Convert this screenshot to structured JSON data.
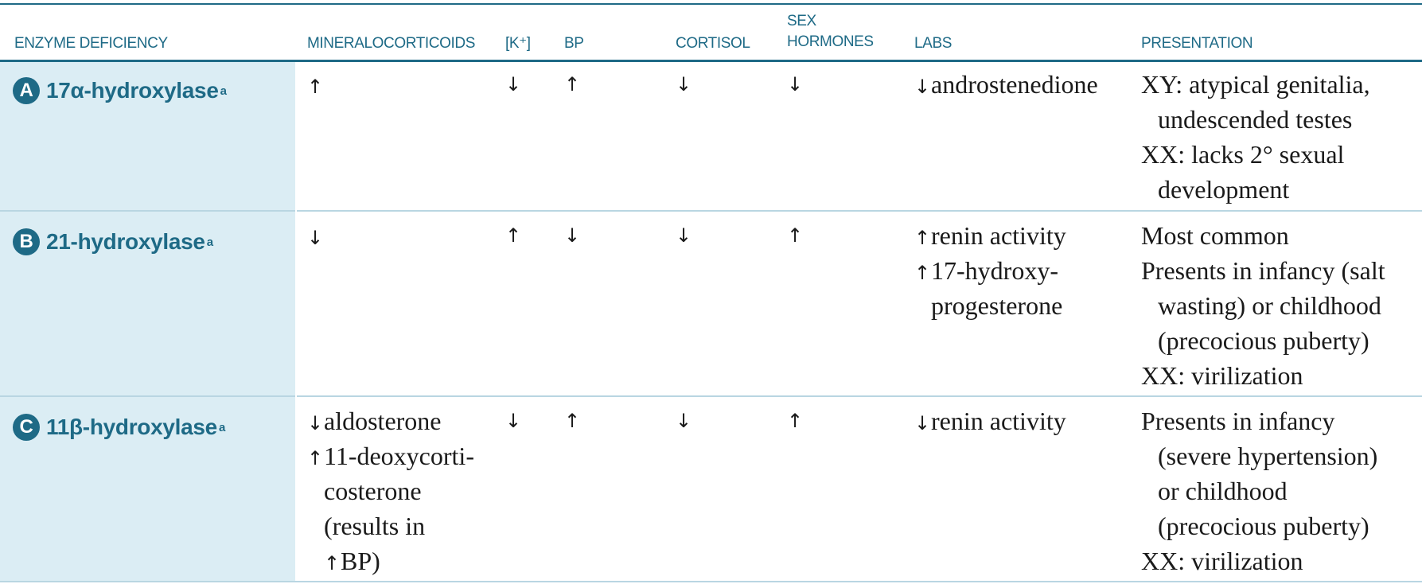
{
  "headers": {
    "enzyme": "ENZYME DEFICIENCY",
    "mineralocorticoids": "MINERALOCORTICOIDS",
    "potassium": "[K⁺]",
    "bp": "BP",
    "cortisol": "CORTISOL",
    "sex_line1": "SEX",
    "sex_line2": "HORMONES",
    "labs": "LABS",
    "presentation": "PRESENTATION"
  },
  "symbols": {
    "up": "↑",
    "down": "↓"
  },
  "rows": [
    {
      "letter": "A",
      "name": "17α-hydroxylase",
      "footnote": "a",
      "mineralocorticoids": [
        {
          "arrow": "↑",
          "text": ""
        }
      ],
      "potassium": "↓",
      "bp": "↑",
      "cortisol": "↓",
      "sex_hormones": "↓",
      "labs": [
        {
          "arrow": "↓",
          "text": "androstenedione"
        }
      ],
      "presentation": [
        "XY: atypical genitalia,",
        "undescended testes",
        "XX: lacks 2° sexual",
        "development"
      ]
    },
    {
      "letter": "B",
      "name": "21-hydroxylase",
      "footnote": "a",
      "mineralocorticoids": [
        {
          "arrow": "↓",
          "text": ""
        }
      ],
      "potassium": "↑",
      "bp": "↓",
      "cortisol": "↓",
      "sex_hormones": "↑",
      "labs": [
        {
          "arrow": "↑",
          "text": "renin activity"
        },
        {
          "arrow": "↑",
          "text": "17-hydroxy-"
        },
        {
          "arrow": "",
          "text": "progesterone"
        }
      ],
      "presentation": [
        "Most common",
        "Presents in infancy (salt",
        "wasting) or childhood",
        "(precocious puberty)",
        "XX: virilization"
      ]
    },
    {
      "letter": "C",
      "name": "11β-hydroxylase",
      "footnote": "a",
      "mineralocorticoids": [
        {
          "arrow": "↓",
          "text": "aldosterone"
        },
        {
          "arrow": "↑",
          "text": "11-deoxycorti-"
        },
        {
          "arrow": "",
          "text": "costerone"
        },
        {
          "arrow": "",
          "text": "(results in"
        },
        {
          "arrow": "↑",
          "text": "BP)"
        }
      ],
      "potassium": "↓",
      "bp": "↑",
      "cortisol": "↓",
      "sex_hormones": "↑",
      "labs": [
        {
          "arrow": "↓",
          "text": "renin activity"
        }
      ],
      "presentation": [
        "Presents in infancy",
        "(severe hypertension)",
        "or childhood",
        "(precocious puberty)",
        "XX: virilization"
      ]
    }
  ],
  "colors": {
    "accent": "#1e6a86",
    "row_label_background": "#dbedf4",
    "row_rule": "#b9d6e2",
    "body_text": "#1a1a1a"
  }
}
